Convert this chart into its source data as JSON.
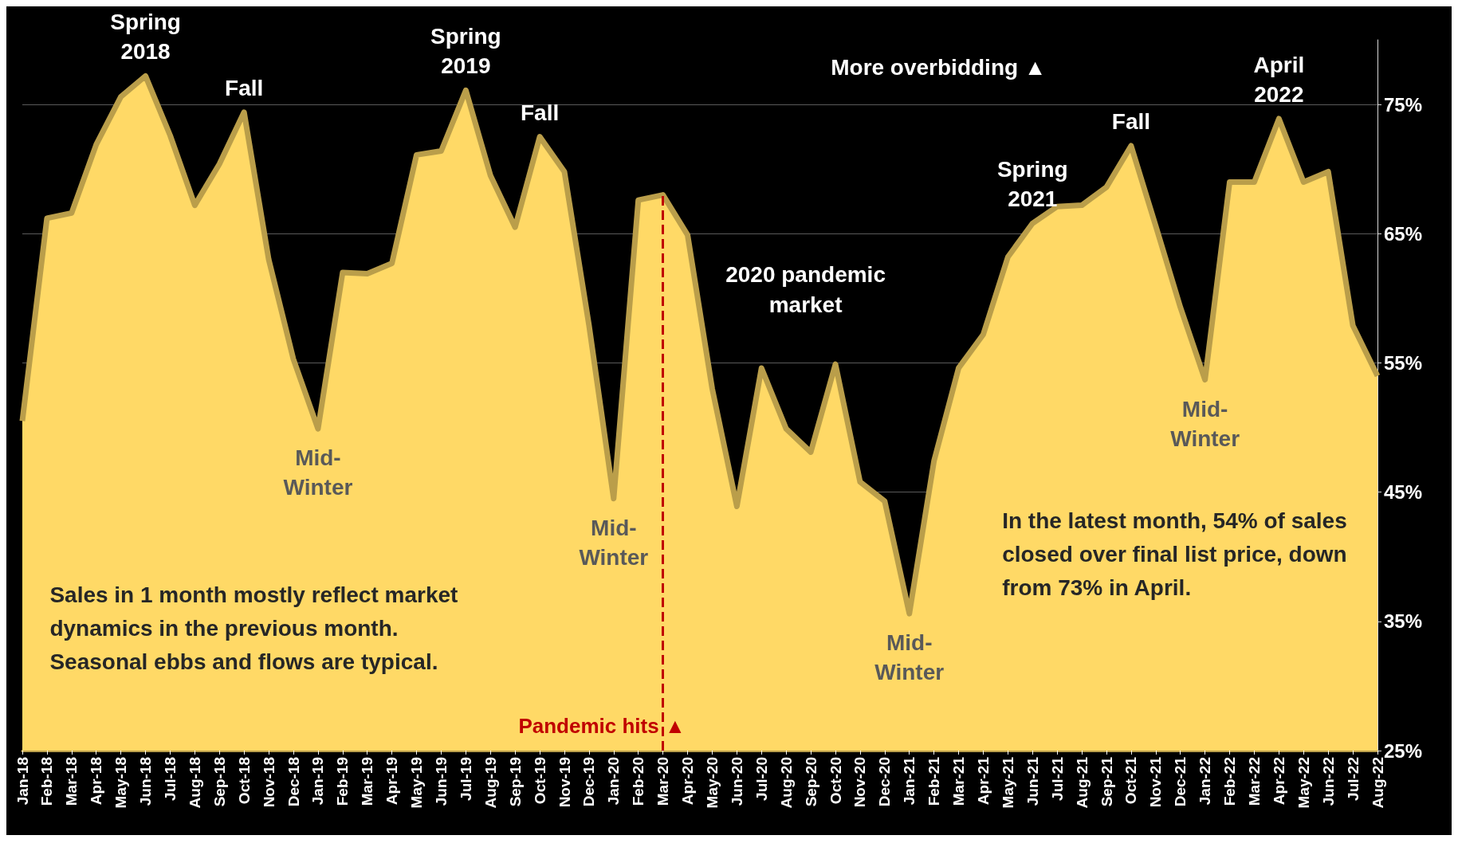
{
  "chart_data": {
    "type": "area",
    "categories": [
      "Jan-18",
      "Feb-18",
      "Mar-18",
      "Apr-18",
      "May-18",
      "Jun-18",
      "Jul-18",
      "Aug-18",
      "Sep-18",
      "Oct-18",
      "Nov-18",
      "Dec-18",
      "Jan-19",
      "Feb-19",
      "Mar-19",
      "Apr-19",
      "May-19",
      "Jun-19",
      "Jul-19",
      "Aug-19",
      "Sep-19",
      "Oct-19",
      "Nov-19",
      "Dec-19",
      "Jan-20",
      "Feb-20",
      "Mar-20",
      "Apr-20",
      "May-20",
      "Jun-20",
      "Jul-20",
      "Aug-20",
      "Sep-20",
      "Oct-20",
      "Nov-20",
      "Dec-20",
      "Jan-21",
      "Feb-21",
      "Mar-21",
      "Apr-21",
      "May-21",
      "Jun-21",
      "Jul-21",
      "Aug-21",
      "Sep-21",
      "Oct-21",
      "Nov-21",
      "Dec-21",
      "Jan-22",
      "Feb-22",
      "Mar-22",
      "Apr-22",
      "May-22",
      "Jun-22",
      "Jul-22",
      "Aug-22"
    ],
    "values": [
      50.5,
      66.2,
      66.6,
      71.9,
      75.6,
      77.2,
      72.6,
      67.2,
      70.4,
      74.4,
      63.0,
      55.3,
      49.9,
      62.0,
      61.9,
      62.7,
      71.1,
      71.4,
      76.1,
      69.5,
      65.5,
      72.5,
      69.8,
      57.9,
      44.5,
      67.6,
      68.0,
      64.9,
      53.0,
      43.9,
      54.6,
      49.9,
      48.1,
      54.9,
      45.8,
      44.3,
      35.6,
      47.4,
      54.6,
      57.2,
      63.2,
      65.8,
      67.1,
      67.2,
      68.6,
      71.8,
      65.6,
      59.3,
      53.7,
      69.0,
      69.0,
      73.9,
      69.0,
      69.8,
      57.9,
      54.0
    ],
    "color": "#ffd966",
    "ylim": [
      25,
      80
    ],
    "yticks": [
      {
        "value": 25,
        "label": "25%"
      },
      {
        "value": 35,
        "label": "35%"
      },
      {
        "value": 45,
        "label": "45%"
      },
      {
        "value": 55,
        "label": "55%"
      },
      {
        "value": 65,
        "label": "65%"
      },
      {
        "value": 75,
        "label": "75%"
      }
    ],
    "grid": "y",
    "marker": "none",
    "line_style": "solid",
    "ref_lines": [
      {
        "axis": "x",
        "value": "Mar-20",
        "label": "Pandemic hits ▲",
        "color": "#c00000",
        "line_style": "dashed"
      }
    ],
    "annotations": [
      {
        "text": "Spring\n2018",
        "x": "Jun-18",
        "y": 77.2
      },
      {
        "text": "Fall",
        "x": "Oct-18",
        "y": 74.4
      },
      {
        "text": "Mid-\nWinter",
        "x": "Jan-19",
        "y": 49.9
      },
      {
        "text": "Spring\n2019",
        "x": "Jul-19",
        "y": 76.1
      },
      {
        "text": "Fall",
        "x": "Oct-19",
        "y": 72.5
      },
      {
        "text": "Mid-\nWinter",
        "x": "Jan-20",
        "y": 44.5
      },
      {
        "text": "Mid-\nWinter",
        "x": "Jan-21",
        "y": 35.6
      },
      {
        "text": "Spring\n2021",
        "x": "Jun-21",
        "y": 65.8
      },
      {
        "text": "Fall",
        "x": "Oct-21",
        "y": 71.8
      },
      {
        "text": "Mid-\nWinter",
        "x": "Jan-22",
        "y": 53.7
      },
      {
        "text": "April\n2022",
        "x": "Apr-22",
        "y": 73.9
      },
      "2020 pandemic\nmarket",
      "More overbidding ▲",
      "Sales in 1 month mostly reflect market dynamics in the previous month. Seasonal ebbs and flows are typical.",
      "In the latest month, 54% of sales closed over final list price, down from 73% in April."
    ]
  }
}
